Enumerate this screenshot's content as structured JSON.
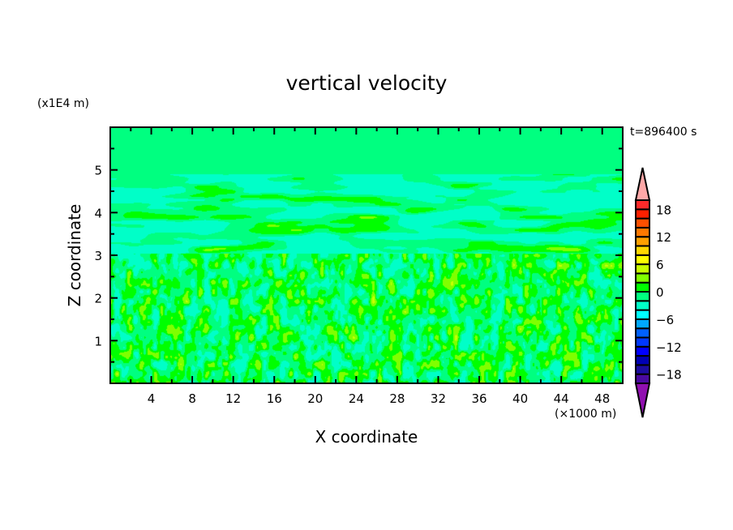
{
  "chart_data": {
    "type": "heatmap",
    "subtype": "filled-contour",
    "title": "vertical velocity",
    "xlabel": "X coordinate",
    "ylabel": "Z coordinate",
    "x_unit": "(×1000 m)",
    "y_unit": "(x1E4 m)",
    "annotation": "t=896400 s",
    "xlim": [
      0,
      50
    ],
    "ylim": [
      0,
      6
    ],
    "x_ticks": [
      4,
      8,
      12,
      16,
      20,
      24,
      28,
      32,
      36,
      40,
      44,
      48
    ],
    "y_ticks": [
      1,
      2,
      3,
      4,
      5
    ],
    "grid": false,
    "colorbar": {
      "levels": [
        -20,
        -18,
        -16,
        -14,
        -12,
        -10,
        -8,
        -6,
        -4,
        -2,
        0,
        2,
        4,
        6,
        8,
        10,
        12,
        14,
        16,
        18,
        20
      ],
      "labels": [
        "18",
        "12",
        "6",
        "0",
        "−6",
        "−12",
        "−18"
      ],
      "label_values": [
        18,
        12,
        6,
        0,
        -6,
        -12,
        -18
      ],
      "colors_low_to_high": [
        "#4a0aa0",
        "#1c0ca0",
        "#0000b4",
        "#0000ff",
        "#0038ff",
        "#0060ff",
        "#00a8ff",
        "#00ffff",
        "#00ffc8",
        "#00ff80",
        "#00ff00",
        "#80ff00",
        "#c8ff00",
        "#ffff00",
        "#ffd800",
        "#ffa000",
        "#ff7800",
        "#ff5000",
        "#ff2000",
        "#ff2a2a"
      ],
      "over_color": "#ffa8a8",
      "under_color": "#9010b0",
      "placement": "right"
    }
  }
}
